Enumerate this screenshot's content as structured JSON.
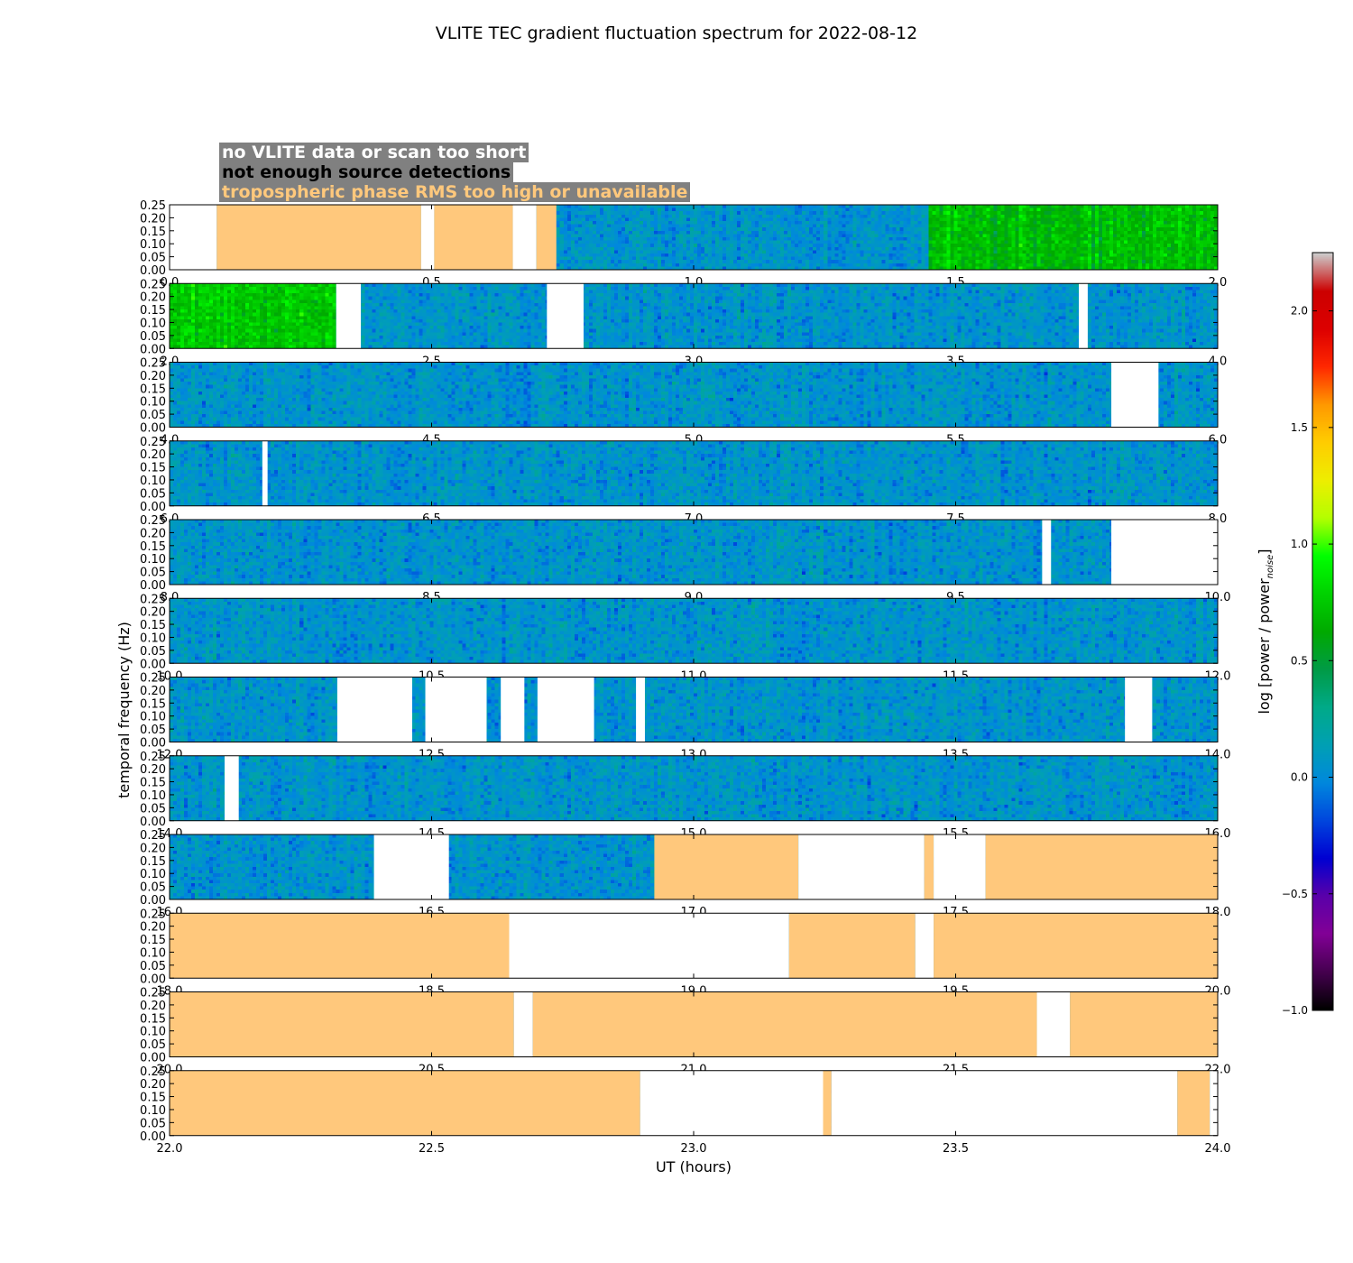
{
  "chart_data": {
    "type": "heatmap",
    "title": "VLITE TEC gradient fluctuation spectrum for 2022-08-12",
    "xlabel": "UT (hours)",
    "ylabel": "temporal frequency (Hz)",
    "colorbar_label": "log [power / power",
    "colorbar_label_subscript": "noise",
    "colorbar_label_close": "]",
    "colormap": "nipy_spectral",
    "colorbar_range": [
      -1.0,
      2.25
    ],
    "colorbar_ticks": [
      "−1.0",
      "−0.5",
      "0.0",
      "0.5",
      "1.0",
      "1.5",
      "2.0"
    ],
    "colorbar_tick_values": [
      -1.0,
      -0.5,
      0.0,
      0.5,
      1.0,
      1.5,
      2.0
    ],
    "y_range": [
      0,
      0.25
    ],
    "y_ticks": [
      "0.00",
      "0.05",
      "0.10",
      "0.15",
      "0.20",
      "0.25"
    ],
    "legend": [
      {
        "label": "no VLITE data or scan too short",
        "category": "no_data",
        "text_color": "#ffffff"
      },
      {
        "label": "not enough source detections",
        "category": "few_detections",
        "text_color": "#000000"
      },
      {
        "label": "tropospheric phase RMS too high or unavailable",
        "category": "tropo",
        "text_color": "#ffc87c"
      }
    ],
    "category_colors": {
      "no_data": "#ffffff",
      "tropo": "#ffc87c"
    },
    "panels": [
      {
        "x_range": [
          0,
          2
        ],
        "x_ticks": [
          "0.0",
          "0.5",
          "1.0",
          "1.5",
          "2.0"
        ],
        "masked": [
          {
            "start": 0.0,
            "end": 0.09,
            "category": "no_data"
          },
          {
            "start": 0.09,
            "end": 0.48,
            "category": "tropo"
          },
          {
            "start": 0.48,
            "end": 0.505,
            "category": "no_data"
          },
          {
            "start": 0.505,
            "end": 0.655,
            "category": "tropo"
          },
          {
            "start": 0.655,
            "end": 0.7,
            "category": "no_data"
          },
          {
            "start": 0.7,
            "end": 0.738,
            "category": "tropo"
          }
        ],
        "enhanced": [
          {
            "start": 1.45,
            "end": 2.0,
            "level": 0.7
          }
        ]
      },
      {
        "x_range": [
          2,
          4
        ],
        "x_ticks": [
          "2.0",
          "2.5",
          "3.0",
          "3.5",
          "4.0"
        ],
        "masked": [
          {
            "start": 2.318,
            "end": 2.365,
            "category": "no_data"
          },
          {
            "start": 2.72,
            "end": 2.79,
            "category": "no_data"
          },
          {
            "start": 3.735,
            "end": 3.752,
            "category": "no_data"
          }
        ],
        "enhanced": [
          {
            "start": 2.0,
            "end": 2.318,
            "level": 0.75
          }
        ]
      },
      {
        "x_range": [
          4,
          6
        ],
        "x_ticks": [
          "4.0",
          "4.5",
          "5.0",
          "5.5",
          "6.0"
        ],
        "masked": [
          {
            "start": 5.797,
            "end": 5.887,
            "category": "no_data"
          }
        ],
        "enhanced": []
      },
      {
        "x_range": [
          6,
          8
        ],
        "x_ticks": [
          "6.0",
          "6.5",
          "7.0",
          "7.5",
          "8.0"
        ],
        "masked": [
          {
            "start": 6.177,
            "end": 6.187,
            "category": "no_data"
          }
        ],
        "enhanced": []
      },
      {
        "x_range": [
          8,
          10
        ],
        "x_ticks": [
          "8.0",
          "8.5",
          "9.0",
          "9.5",
          "10.0"
        ],
        "masked": [
          {
            "start": 9.665,
            "end": 9.682,
            "category": "no_data"
          },
          {
            "start": 9.797,
            "end": 10.0,
            "category": "no_data"
          }
        ],
        "enhanced": []
      },
      {
        "x_range": [
          10,
          12
        ],
        "x_ticks": [
          "10.0",
          "10.5",
          "11.0",
          "11.5",
          "12.0"
        ],
        "masked": [],
        "enhanced": []
      },
      {
        "x_range": [
          12,
          14
        ],
        "x_ticks": [
          "12.0",
          "12.5",
          "13.0",
          "13.5",
          "14.0"
        ],
        "masked": [
          {
            "start": 12.32,
            "end": 12.463,
            "category": "no_data"
          },
          {
            "start": 12.488,
            "end": 12.605,
            "category": "no_data"
          },
          {
            "start": 12.632,
            "end": 12.677,
            "category": "no_data"
          },
          {
            "start": 12.702,
            "end": 12.81,
            "category": "no_data"
          },
          {
            "start": 12.89,
            "end": 12.907,
            "category": "no_data"
          },
          {
            "start": 13.823,
            "end": 13.875,
            "category": "no_data"
          }
        ],
        "enhanced": []
      },
      {
        "x_range": [
          14,
          16
        ],
        "x_ticks": [
          "14.0",
          "14.5",
          "15.0",
          "15.5",
          "16.0"
        ],
        "masked": [
          {
            "start": 14.105,
            "end": 14.132,
            "category": "no_data"
          }
        ],
        "enhanced": []
      },
      {
        "x_range": [
          16,
          18
        ],
        "x_ticks": [
          "16.0",
          "16.5",
          "17.0",
          "17.5",
          "18.0"
        ],
        "masked": [
          {
            "start": 16.39,
            "end": 16.533,
            "category": "no_data"
          },
          {
            "start": 16.925,
            "end": 17.2,
            "category": "tropo"
          },
          {
            "start": 17.2,
            "end": 17.44,
            "category": "no_data"
          },
          {
            "start": 17.44,
            "end": 17.458,
            "category": "tropo"
          },
          {
            "start": 17.458,
            "end": 17.557,
            "category": "no_data"
          },
          {
            "start": 17.557,
            "end": 18.0,
            "category": "tropo"
          }
        ],
        "enhanced": []
      },
      {
        "x_range": [
          18,
          20
        ],
        "x_ticks": [
          "18.0",
          "18.5",
          "19.0",
          "19.5",
          "20.0"
        ],
        "masked": [
          {
            "start": 18.0,
            "end": 18.648,
            "category": "tropo"
          },
          {
            "start": 18.648,
            "end": 19.182,
            "category": "no_data"
          },
          {
            "start": 19.182,
            "end": 19.423,
            "category": "tropo"
          },
          {
            "start": 19.423,
            "end": 19.458,
            "category": "no_data"
          },
          {
            "start": 19.458,
            "end": 20.0,
            "category": "tropo"
          }
        ],
        "enhanced": []
      },
      {
        "x_range": [
          20,
          22
        ],
        "x_ticks": [
          "20.0",
          "20.5",
          "21.0",
          "21.5",
          "22.0"
        ],
        "masked": [
          {
            "start": 20.0,
            "end": 20.657,
            "category": "tropo"
          },
          {
            "start": 20.657,
            "end": 20.693,
            "category": "no_data"
          },
          {
            "start": 20.693,
            "end": 21.655,
            "category": "tropo"
          },
          {
            "start": 21.655,
            "end": 21.718,
            "category": "no_data"
          },
          {
            "start": 21.718,
            "end": 22.0,
            "category": "tropo"
          }
        ],
        "enhanced": []
      },
      {
        "x_range": [
          22,
          24
        ],
        "x_ticks": [
          "22.0",
          "22.5",
          "23.0",
          "23.5",
          "24.0"
        ],
        "masked": [
          {
            "start": 22.0,
            "end": 22.898,
            "category": "tropo"
          },
          {
            "start": 22.898,
            "end": 23.247,
            "category": "no_data"
          },
          {
            "start": 23.247,
            "end": 23.263,
            "category": "tropo"
          },
          {
            "start": 23.263,
            "end": 23.923,
            "category": "no_data"
          },
          {
            "start": 23.923,
            "end": 23.985,
            "category": "tropo"
          },
          {
            "start": 23.985,
            "end": 24.0,
            "category": "no_data"
          }
        ],
        "enhanced": []
      }
    ]
  }
}
